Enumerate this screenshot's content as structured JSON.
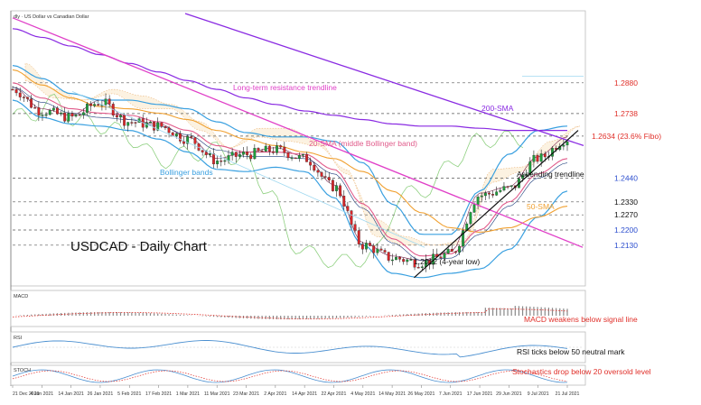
{
  "header": {
    "symbol_label": "dly · US Dollar vs Canadian Dollar"
  },
  "chart_title": "USDCAD - Daily Chart",
  "annotations": {
    "resistance": "Long-term resistance trendline",
    "sma200": "200-SMA",
    "sma20": "20-SMA (middle Bollinger band)",
    "bollinger": "Bollinger bands",
    "ascending": "Ascending trendline",
    "sma50": "50-SMA",
    "low": "1.2012 (4-year low)"
  },
  "level_labels": [
    {
      "text": "1.2880",
      "value": 1.288,
      "color": "#e0302a"
    },
    {
      "text": "1.2738",
      "value": 1.2738,
      "color": "#e0302a"
    },
    {
      "text": "1.2634 (23.6% Fibo)",
      "value": 1.2634,
      "color": "#e0302a"
    },
    {
      "text": "1.2440",
      "value": 1.244,
      "color": "#2d4fcf"
    },
    {
      "text": "1.2330",
      "value": 1.233,
      "color": "#111111"
    },
    {
      "text": "1.2270",
      "value": 1.227,
      "color": "#111111"
    },
    {
      "text": "1.2200",
      "value": 1.22,
      "color": "#2d4fcf"
    },
    {
      "text": "1.2130",
      "value": 1.213,
      "color": "#2d4fcf"
    }
  ],
  "panels": {
    "macd": {
      "header": "MACD",
      "note": "MACD weakens below signal line"
    },
    "rsi": {
      "header": "RSI",
      "note": "RSI ticks below 50 neutral mark"
    },
    "stoch": {
      "header": "STOCH",
      "note": "Stochastics drop below 20 oversold level"
    }
  },
  "colors": {
    "bull": "#1f9e3c",
    "bear": "#d8262a",
    "resistance": "#e040c8",
    "sma200": "#8a2be2",
    "sma50": "#f0a030",
    "sma20": "#e05a8a",
    "bollinger": "#3aa0e0",
    "ascending": "#111111",
    "note_red": "#e0302a"
  },
  "chart_data": {
    "type": "candlestick",
    "x": [
      "21 Dec 2020",
      "4 Jan 2021",
      "14 Jan 2021",
      "26 Jan 2021",
      "5 Feb 2021",
      "17 Feb 2021",
      "1 Mar 2021",
      "11 Mar 2021",
      "23 Mar 2021",
      "2 Apr 2021",
      "14 Apr 2021",
      "22 Apr 2021",
      "4 May 2021",
      "14 May 2021",
      "26 May 2021",
      "7 Jun 2021",
      "17 Jun 2021",
      "29 Jun 2021",
      "9 Jul 2021",
      "21 Jul 2021"
    ],
    "close": [
      1.285,
      1.275,
      1.272,
      1.279,
      1.27,
      1.268,
      1.262,
      1.252,
      1.255,
      1.257,
      1.253,
      1.24,
      1.213,
      1.207,
      1.205,
      1.209,
      1.236,
      1.239,
      1.253,
      1.262
    ],
    "levels": [
      1.288,
      1.2738,
      1.2634,
      1.244,
      1.233,
      1.227,
      1.22,
      1.213
    ],
    "low_marker": {
      "x": "26 May 2021",
      "value": 1.2012
    },
    "series": [
      {
        "name": "200-SMA",
        "values": [
          1.313,
          1.309,
          1.305,
          1.301,
          1.297,
          1.293,
          1.289,
          1.285,
          1.281,
          1.278,
          1.275,
          1.273,
          1.271,
          1.269,
          1.268,
          1.268,
          1.267,
          1.266,
          1.266,
          1.266
        ]
      },
      {
        "name": "50-SMA",
        "values": [
          1.294,
          1.287,
          1.281,
          1.277,
          1.276,
          1.274,
          1.271,
          1.266,
          1.262,
          1.259,
          1.256,
          1.253,
          1.247,
          1.238,
          1.228,
          1.221,
          1.219,
          1.221,
          1.226,
          1.231
        ]
      },
      {
        "name": "20-SMA",
        "values": [
          1.288,
          1.281,
          1.276,
          1.274,
          1.273,
          1.27,
          1.266,
          1.259,
          1.256,
          1.256,
          1.255,
          1.248,
          1.232,
          1.216,
          1.208,
          1.209,
          1.22,
          1.233,
          1.246,
          1.253
        ]
      }
    ],
    "ylim": [
      1.195,
      1.32
    ]
  }
}
